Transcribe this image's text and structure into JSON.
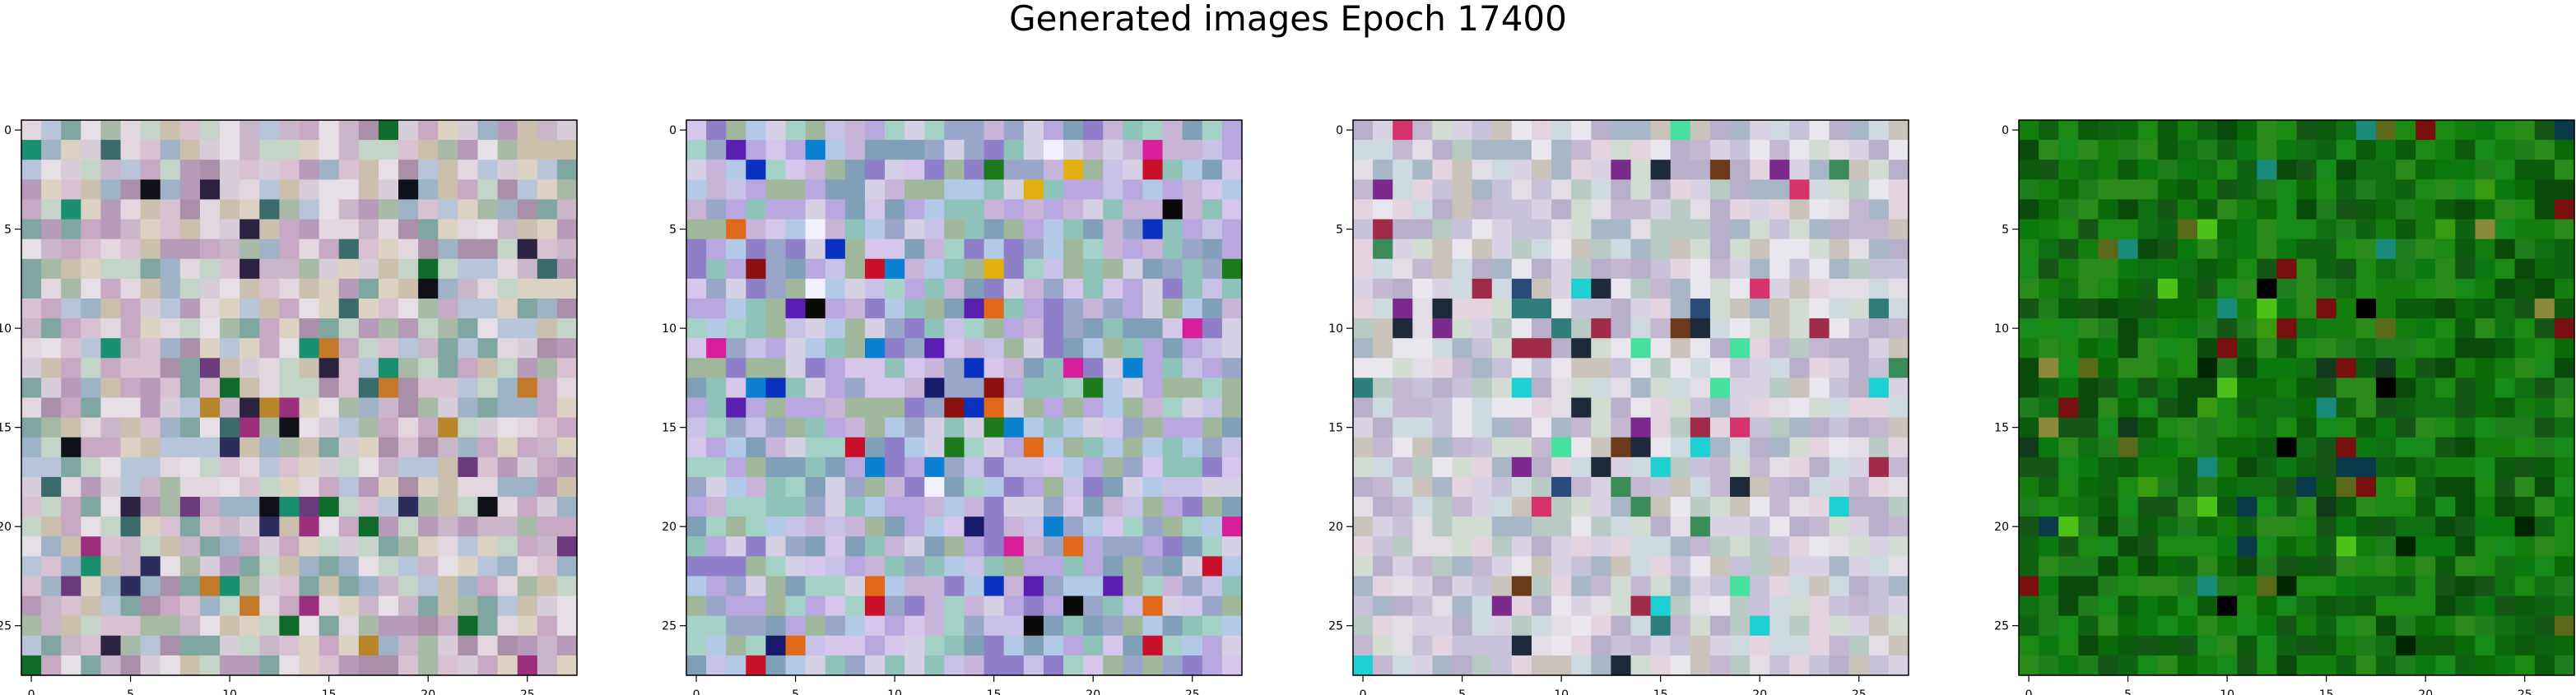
{
  "figure": {
    "suptitle": "Generated images Epoch 17400"
  },
  "chart_data": [
    {
      "type": "heatmap",
      "rows": 28,
      "cols": 28,
      "xticks": [
        0,
        5,
        10,
        15,
        20,
        25
      ],
      "yticks": [
        0,
        5,
        10,
        15,
        20,
        25
      ],
      "xlim": [
        -0.5,
        27.5
      ],
      "ylim": [
        27.5,
        -0.5
      ],
      "grid": false,
      "palette": [
        "#c9b6c8",
        "#b8c4d8",
        "#d6cdd9",
        "#a9b9a8",
        "#e2d7df",
        "#c5d4c9",
        "#b59bb7",
        "#d8c1d0",
        "#9fb3c6",
        "#cbbfae",
        "#e6e0e6",
        "#aa8fa9",
        "#7fa6a0",
        "#c7a9c4",
        "#dcd2c4"
      ],
      "accents": [
        "#101018",
        "#2b2240",
        "#0f6b2c",
        "#b8862a",
        "#9b2f7c",
        "#3a6a6a",
        "#1a8f6f",
        "#6b3a7a",
        "#c27a2a",
        "#2c2c5a"
      ],
      "seed": 11
    },
    {
      "type": "heatmap",
      "rows": 28,
      "cols": 28,
      "xticks": [
        0,
        5,
        10,
        15,
        20,
        25
      ],
      "yticks": [
        0,
        5,
        10,
        15,
        20,
        25
      ],
      "xlim": [
        -0.5,
        27.5
      ],
      "ylim": [
        27.5,
        -0.5
      ],
      "grid": false,
      "palette": [
        "#b9a8e0",
        "#8fc2b8",
        "#c9c2e8",
        "#9aa6c9",
        "#d7c6ec",
        "#a4d2c6",
        "#8f7fc9",
        "#c8b4d8",
        "#b3c9e8",
        "#a1b79c",
        "#d6d0e4",
        "#7fa0b8"
      ],
      "accents": [
        "#c8102a",
        "#1a1a6a",
        "#0a0a0a",
        "#e0b010",
        "#1c7a1c",
        "#d81f9a",
        "#0b7fd0",
        "#8a0f0f",
        "#5a1fb0",
        "#e06a1a",
        "#0a30c0",
        "#f0f0ff"
      ],
      "seed": 23
    },
    {
      "type": "heatmap",
      "rows": 28,
      "cols": 28,
      "xticks": [
        0,
        5,
        10,
        15,
        20,
        25
      ],
      "yticks": [
        0,
        5,
        10,
        15,
        20,
        25
      ],
      "xlim": [
        -0.5,
        27.5
      ],
      "ylim": [
        27.5,
        -0.5
      ],
      "grid": false,
      "palette": [
        "#d9d2e2",
        "#c8c2d8",
        "#e3dde6",
        "#b9c9c4",
        "#cfd9e0",
        "#e4d4df",
        "#c4b8d0",
        "#b8b0c8",
        "#d2dcd2",
        "#cac3bb",
        "#e9e6ee",
        "#a8b6c6"
      ],
      "accents": [
        "#1e2a3a",
        "#2f7d7a",
        "#d6336c",
        "#7a2a8a",
        "#1fd0d0",
        "#3a8a5a",
        "#a02a4a",
        "#2a4a7a",
        "#46e0a0",
        "#6a3a1a"
      ],
      "seed": 37
    },
    {
      "type": "heatmap",
      "rows": 28,
      "cols": 28,
      "xticks": [
        0,
        5,
        10,
        15,
        20,
        25
      ],
      "yticks": [
        0,
        5,
        10,
        15,
        20,
        25
      ],
      "xlim": [
        -0.5,
        27.5
      ],
      "ylim": [
        27.5,
        -0.5
      ],
      "grid": false,
      "palette": [
        "#0a6a0a",
        "#137d0e",
        "#0c5a0c",
        "#1a8a12",
        "#0a4a0a",
        "#178a1c",
        "#0e7012",
        "#0f6212",
        "#2a8a1a",
        "#0a7a10",
        "#155515",
        "#1e7e1e"
      ],
      "accents": [
        "#002600",
        "#000000",
        "#7a0f0f",
        "#3a9a10",
        "#0a3a4a",
        "#1a8a7a",
        "#4fc21a",
        "#5a6a1a",
        "#103a1a",
        "#8a8a3a"
      ],
      "seed": 53
    }
  ]
}
